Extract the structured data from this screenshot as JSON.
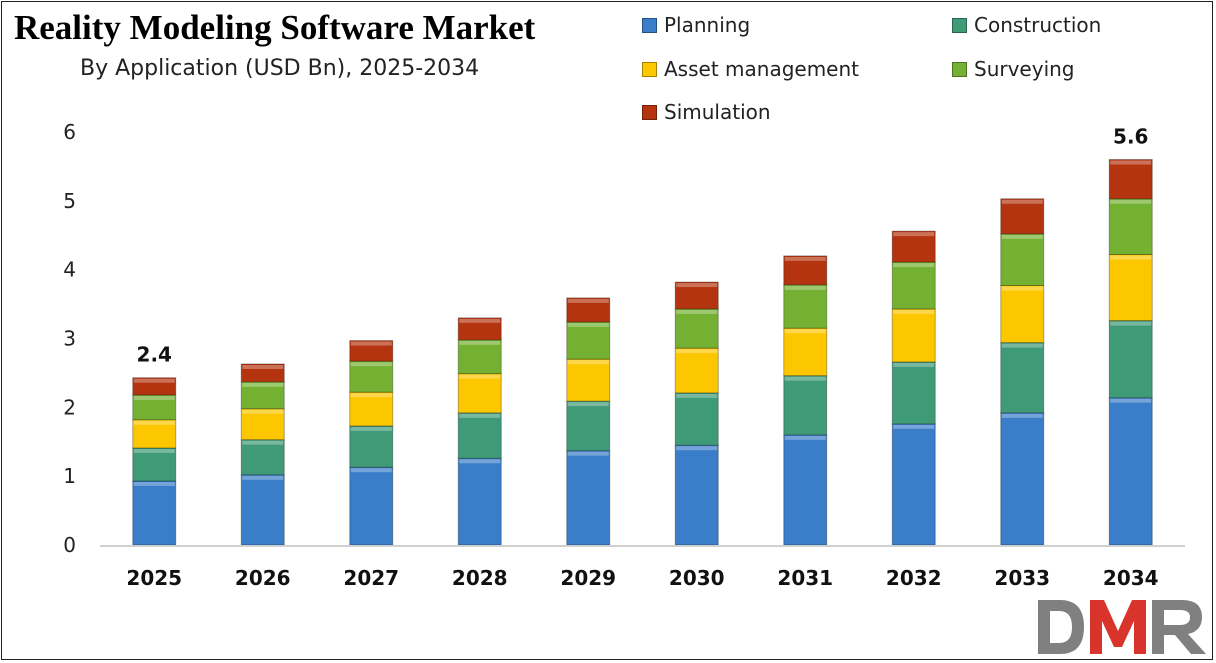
{
  "chart_data": {
    "type": "bar",
    "stacked": true,
    "title": "Reality Modeling Software Market",
    "subtitle": "By Application (USD Bn), 2025-2034",
    "categories": [
      "2025",
      "2026",
      "2027",
      "2028",
      "2029",
      "2030",
      "2031",
      "2032",
      "2033",
      "2034"
    ],
    "series": [
      {
        "name": "Planning",
        "color": "#3a7dc9",
        "values": [
          0.93,
          1.02,
          1.13,
          1.26,
          1.37,
          1.45,
          1.6,
          1.76,
          1.92,
          2.14
        ]
      },
      {
        "name": "Construction",
        "color": "#3f9a78",
        "values": [
          0.48,
          0.51,
          0.6,
          0.66,
          0.72,
          0.76,
          0.86,
          0.9,
          1.02,
          1.12
        ]
      },
      {
        "name": "Asset management",
        "color": "#fdc700",
        "values": [
          0.41,
          0.45,
          0.49,
          0.57,
          0.61,
          0.65,
          0.69,
          0.77,
          0.83,
          0.96
        ]
      },
      {
        "name": "Surveying",
        "color": "#74b132",
        "values": [
          0.36,
          0.39,
          0.45,
          0.49,
          0.54,
          0.57,
          0.63,
          0.68,
          0.75,
          0.81
        ]
      },
      {
        "name": "Simulation",
        "color": "#b4340f",
        "values": [
          0.25,
          0.26,
          0.3,
          0.32,
          0.35,
          0.39,
          0.42,
          0.45,
          0.51,
          0.57
        ]
      }
    ],
    "data_labels": [
      {
        "category": "2025",
        "text": "2.4"
      },
      {
        "category": "2034",
        "text": "5.6"
      }
    ],
    "ylim": [
      0,
      6
    ],
    "yticks": [
      "0",
      "1",
      "2",
      "3",
      "4",
      "5",
      "6"
    ],
    "grid": false,
    "legend": "top-right"
  },
  "logo": {
    "text": "DMR",
    "colors": [
      "#808080",
      "#d9342b",
      "#808080"
    ]
  }
}
